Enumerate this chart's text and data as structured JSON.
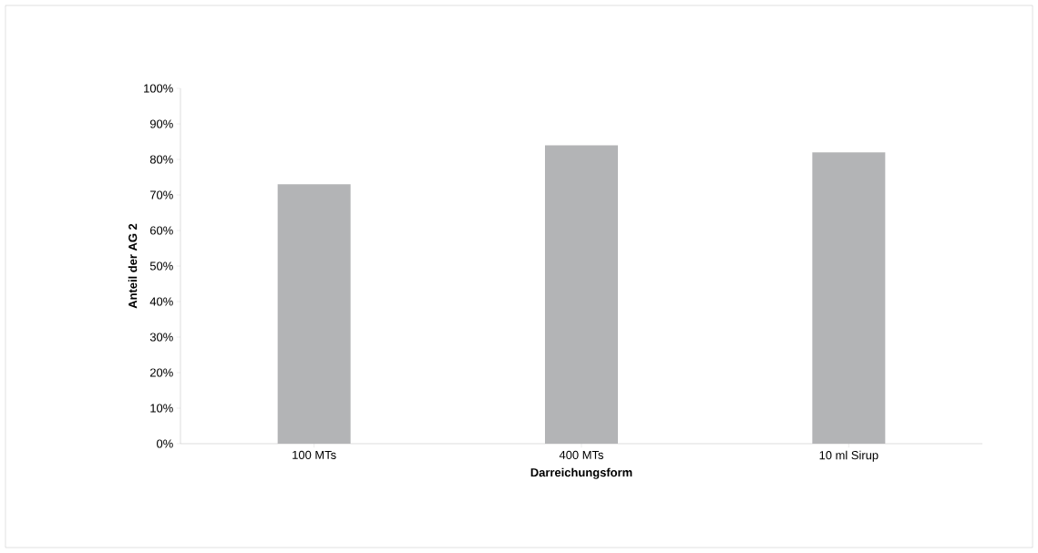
{
  "chart_data": {
    "type": "bar",
    "xlabel": "Darreichungsform",
    "ylabel": "Anteil der AG 2",
    "categories": [
      "100 MTs",
      "400 MTs",
      "10 ml Sirup"
    ],
    "values": [
      73,
      84,
      82
    ],
    "color": "#b3b4b6",
    "ylim": [
      0,
      100
    ],
    "yticks": [
      {
        "value": 0,
        "label": "0%"
      },
      {
        "value": 10,
        "label": "10%"
      },
      {
        "value": 20,
        "label": "20%"
      },
      {
        "value": 30,
        "label": "30%"
      },
      {
        "value": 40,
        "label": "40%"
      },
      {
        "value": 50,
        "label": "50%"
      },
      {
        "value": 60,
        "label": "60%"
      },
      {
        "value": 70,
        "label": "70%"
      },
      {
        "value": 80,
        "label": "80%"
      },
      {
        "value": 90,
        "label": "90%"
      },
      {
        "value": 100,
        "label": "100%"
      }
    ],
    "grid": false,
    "legend": false
  }
}
